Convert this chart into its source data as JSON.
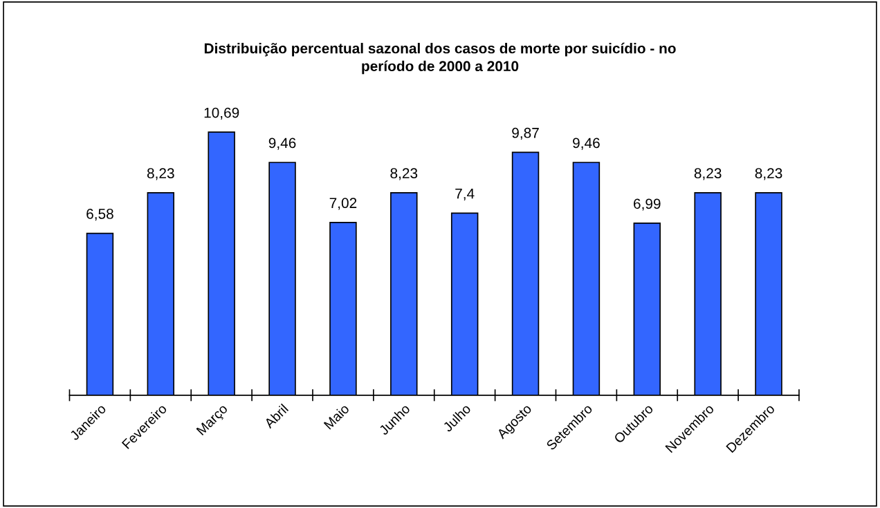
{
  "chart_data": {
    "type": "bar",
    "title": "Distribuição percentual sazonal dos casos de morte por suicídio - no\nperíodo de 2000 a 2010",
    "categories": [
      "Janeiro",
      "Fevereiro",
      "Março",
      "Abril",
      "Maio",
      "Junho",
      "Julho",
      "Agosto",
      "Setembro",
      "Outubro",
      "Novembro",
      "Dezembro"
    ],
    "values": [
      6.58,
      8.23,
      10.69,
      9.46,
      7.02,
      8.23,
      7.4,
      9.87,
      9.46,
      6.99,
      8.23,
      8.23
    ],
    "value_labels": [
      "6,58",
      "8,23",
      "10,69",
      "9,46",
      "7,02",
      "8,23",
      "7,4",
      "9,87",
      "9,46",
      "6,99",
      "8,23",
      "8,23"
    ],
    "color": "#3366ff",
    "grid": false,
    "legend": false,
    "tick_labels": "x"
  }
}
